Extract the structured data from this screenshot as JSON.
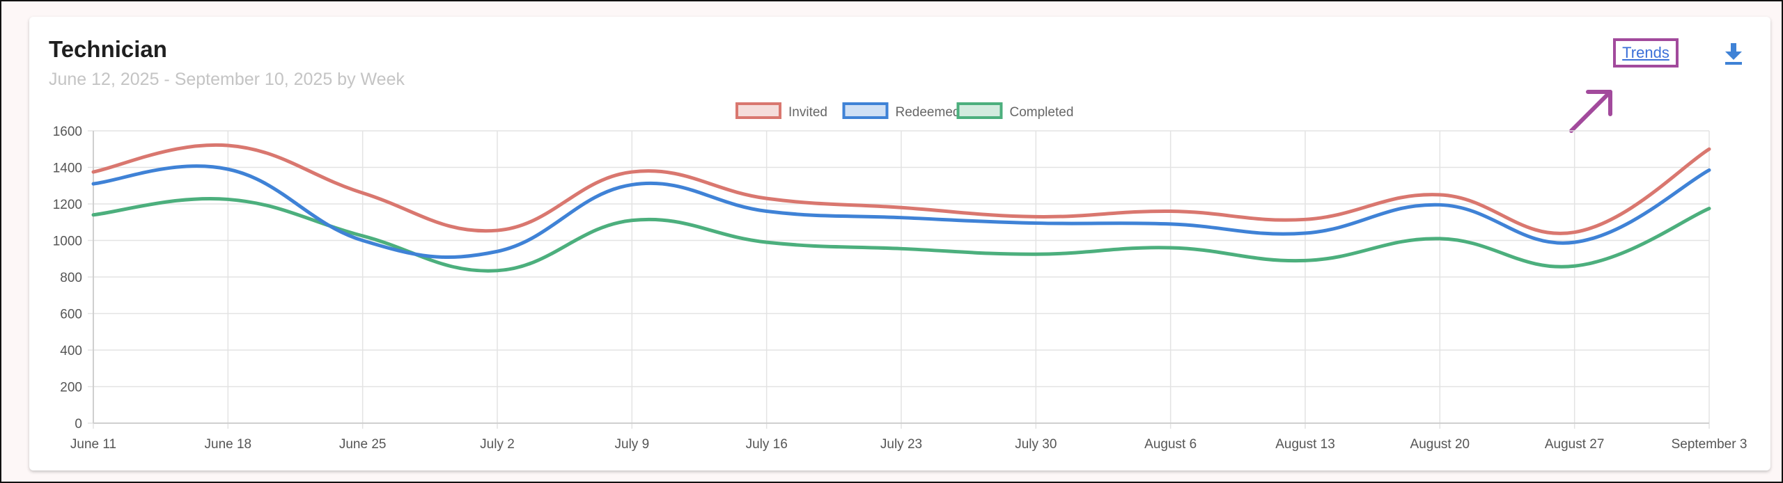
{
  "header": {
    "title": "Technician",
    "subtitle": "June 12, 2025 - September 10, 2025 by Week",
    "trends_label": "Trends"
  },
  "icons": {
    "download": "download-icon",
    "annotation_arrow": "arrow-icon"
  },
  "colors": {
    "invited": "#d9776f",
    "redeemed": "#3f82d6",
    "completed": "#4caf7d",
    "annotation": "#a24a9c",
    "link": "#3b6fd8"
  },
  "chart_data": {
    "type": "line",
    "title": "",
    "xlabel": "",
    "ylabel": "",
    "ylim": [
      0,
      1600
    ],
    "yticks": [
      0,
      200,
      400,
      600,
      800,
      1000,
      1200,
      1400,
      1600
    ],
    "grid": true,
    "legend_position": "top-center",
    "categories": [
      "June 11",
      "June 18",
      "June 25",
      "July 2",
      "July 9",
      "July 16",
      "July 23",
      "July 30",
      "August 6",
      "August 13",
      "August 20",
      "August 27",
      "September 3"
    ],
    "series": [
      {
        "name": "Invited",
        "color": "#d9776f",
        "values": [
          1375,
          1520,
          1260,
          1055,
          1375,
          1230,
          1180,
          1130,
          1160,
          1115,
          1250,
          1045,
          1500
        ]
      },
      {
        "name": "Redeemed",
        "color": "#3f82d6",
        "values": [
          1310,
          1390,
          1000,
          940,
          1305,
          1160,
          1125,
          1095,
          1090,
          1040,
          1195,
          990,
          1385
        ]
      },
      {
        "name": "Completed",
        "color": "#4caf7d",
        "values": [
          1140,
          1225,
          1025,
          835,
          1110,
          990,
          955,
          925,
          960,
          890,
          1010,
          860,
          1175
        ]
      }
    ]
  }
}
